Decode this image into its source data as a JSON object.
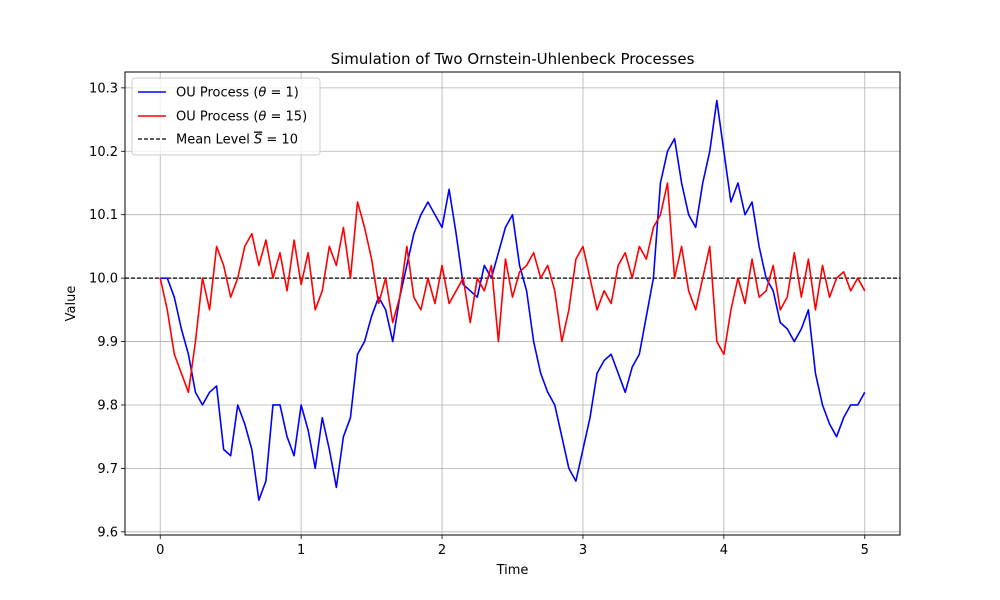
{
  "chart_data": {
    "type": "line",
    "title": "Simulation of Two Ornstein-Uhlenbeck Processes",
    "xlabel": "Time",
    "ylabel": "Value",
    "xlim": [
      -0.25,
      5.25
    ],
    "ylim": [
      9.595,
      10.325
    ],
    "xticks": [
      0,
      1,
      2,
      3,
      4,
      5
    ],
    "xtick_labels": [
      "0",
      "1",
      "2",
      "3",
      "4",
      "5"
    ],
    "yticks": [
      9.6,
      9.7,
      9.8,
      9.9,
      10.0,
      10.1,
      10.2,
      10.3
    ],
    "ytick_labels": [
      "9.6",
      "9.7",
      "9.8",
      "9.9",
      "10.0",
      "10.1",
      "10.2",
      "10.3"
    ],
    "grid": true,
    "legend_position": "top-left",
    "series": [
      {
        "name": "OU Process (θ = 1)",
        "label_main": "OU Process (",
        "label_symbol": "θ",
        "label_rest": " = 1)",
        "color": "#0000ff",
        "style": "solid",
        "x": [
          0,
          0.05,
          0.1,
          0.15,
          0.2,
          0.25,
          0.3,
          0.35,
          0.4,
          0.45,
          0.5,
          0.55,
          0.6,
          0.65,
          0.7,
          0.75,
          0.8,
          0.85,
          0.9,
          0.95,
          1.0,
          1.05,
          1.1,
          1.15,
          1.2,
          1.25,
          1.3,
          1.35,
          1.4,
          1.45,
          1.5,
          1.55,
          1.6,
          1.65,
          1.7,
          1.75,
          1.8,
          1.85,
          1.9,
          1.95,
          2.0,
          2.05,
          2.1,
          2.15,
          2.2,
          2.25,
          2.3,
          2.35,
          2.4,
          2.45,
          2.5,
          2.55,
          2.6,
          2.65,
          2.7,
          2.75,
          2.8,
          2.85,
          2.9,
          2.95,
          3.0,
          3.05,
          3.1,
          3.15,
          3.2,
          3.25,
          3.3,
          3.35,
          3.4,
          3.45,
          3.5,
          3.55,
          3.6,
          3.65,
          3.7,
          3.75,
          3.8,
          3.85,
          3.9,
          3.95,
          4.0,
          4.05,
          4.1,
          4.15,
          4.2,
          4.25,
          4.3,
          4.35,
          4.4,
          4.45,
          4.5,
          4.55,
          4.6,
          4.65,
          4.7,
          4.75,
          4.8,
          4.85,
          4.9,
          4.95,
          5.0
        ],
        "y": [
          10.0,
          10.0,
          9.97,
          9.92,
          9.88,
          9.82,
          9.8,
          9.82,
          9.83,
          9.73,
          9.72,
          9.8,
          9.77,
          9.73,
          9.65,
          9.68,
          9.8,
          9.8,
          9.75,
          9.72,
          9.8,
          9.76,
          9.7,
          9.78,
          9.73,
          9.67,
          9.75,
          9.78,
          9.88,
          9.9,
          9.94,
          9.97,
          9.95,
          9.9,
          9.97,
          10.02,
          10.07,
          10.1,
          10.12,
          10.1,
          10.08,
          10.14,
          10.07,
          9.99,
          9.98,
          9.97,
          10.02,
          10.0,
          10.04,
          10.08,
          10.1,
          10.02,
          9.98,
          9.9,
          9.85,
          9.82,
          9.8,
          9.75,
          9.7,
          9.68,
          9.73,
          9.78,
          9.85,
          9.87,
          9.88,
          9.85,
          9.82,
          9.86,
          9.88,
          9.94,
          10.0,
          10.15,
          10.2,
          10.22,
          10.15,
          10.1,
          10.08,
          10.15,
          10.2,
          10.28,
          10.2,
          10.12,
          10.15,
          10.1,
          10.12,
          10.05,
          10.0,
          9.98,
          9.93,
          9.92,
          9.9,
          9.92,
          9.95,
          9.85,
          9.8,
          9.77,
          9.75,
          9.78,
          9.8,
          9.8,
          9.82
        ]
      },
      {
        "name": "OU Process (θ = 15)",
        "label_main": "OU Process (",
        "label_symbol": "θ",
        "label_rest": " = 15)",
        "color": "#ff0000",
        "style": "solid",
        "x": [
          0,
          0.05,
          0.1,
          0.15,
          0.2,
          0.25,
          0.3,
          0.35,
          0.4,
          0.45,
          0.5,
          0.55,
          0.6,
          0.65,
          0.7,
          0.75,
          0.8,
          0.85,
          0.9,
          0.95,
          1.0,
          1.05,
          1.1,
          1.15,
          1.2,
          1.25,
          1.3,
          1.35,
          1.4,
          1.45,
          1.5,
          1.55,
          1.6,
          1.65,
          1.7,
          1.75,
          1.8,
          1.85,
          1.9,
          1.95,
          2.0,
          2.05,
          2.1,
          2.15,
          2.2,
          2.25,
          2.3,
          2.35,
          2.4,
          2.45,
          2.5,
          2.55,
          2.6,
          2.65,
          2.7,
          2.75,
          2.8,
          2.85,
          2.9,
          2.95,
          3.0,
          3.05,
          3.1,
          3.15,
          3.2,
          3.25,
          3.3,
          3.35,
          3.4,
          3.45,
          3.5,
          3.55,
          3.6,
          3.65,
          3.7,
          3.75,
          3.8,
          3.85,
          3.9,
          3.95,
          4.0,
          4.05,
          4.1,
          4.15,
          4.2,
          4.25,
          4.3,
          4.35,
          4.4,
          4.45,
          4.5,
          4.55,
          4.6,
          4.65,
          4.7,
          4.75,
          4.8,
          4.85,
          4.9,
          4.95,
          5.0
        ],
        "y": [
          10.0,
          9.95,
          9.88,
          9.85,
          9.82,
          9.9,
          10.0,
          9.95,
          10.05,
          10.02,
          9.97,
          10.0,
          10.05,
          10.07,
          10.02,
          10.06,
          10.0,
          10.04,
          9.98,
          10.06,
          9.99,
          10.04,
          9.95,
          9.98,
          10.05,
          10.02,
          10.08,
          10.0,
          10.12,
          10.08,
          10.03,
          9.96,
          10.0,
          9.93,
          9.97,
          10.05,
          9.97,
          9.95,
          10.0,
          9.96,
          10.02,
          9.96,
          9.98,
          10.0,
          9.93,
          10.0,
          9.98,
          10.02,
          9.9,
          10.03,
          9.97,
          10.01,
          10.02,
          10.04,
          10.0,
          10.02,
          9.98,
          9.9,
          9.95,
          10.03,
          10.05,
          10.0,
          9.95,
          9.98,
          9.96,
          10.02,
          10.04,
          10.0,
          10.05,
          10.03,
          10.08,
          10.1,
          10.15,
          10.0,
          10.05,
          9.98,
          9.95,
          10.0,
          10.05,
          9.9,
          9.88,
          9.95,
          10.0,
          9.96,
          10.03,
          9.97,
          9.98,
          10.02,
          9.95,
          9.97,
          10.04,
          9.97,
          10.03,
          9.95,
          10.02,
          9.97,
          10.0,
          10.01,
          9.98,
          10.0,
          9.98
        ]
      },
      {
        "name": "Mean Level S̄ = 10",
        "label_main": "Mean Level ",
        "label_symbol": "S",
        "label_rest": " = 10",
        "color": "#000000",
        "style": "dashed",
        "value": 10.0
      }
    ]
  }
}
